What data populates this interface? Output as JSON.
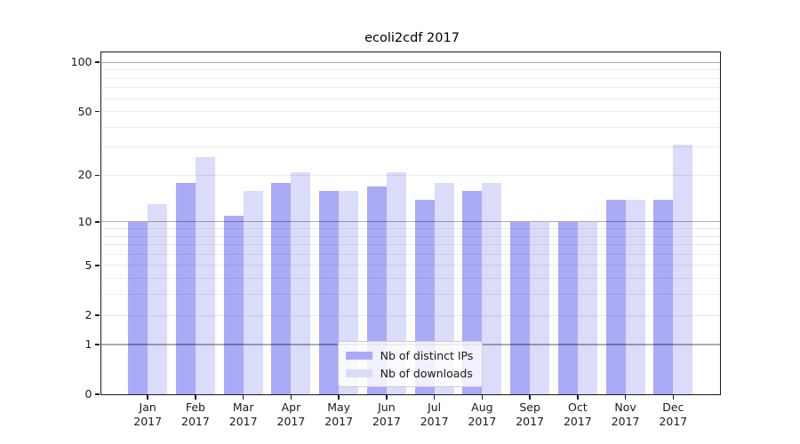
{
  "title": "ecoli2cdf 2017",
  "chart_data": {
    "type": "bar",
    "title": "ecoli2cdf 2017",
    "categories": [
      "Jan 2017",
      "Feb 2017",
      "Mar 2017",
      "Apr 2017",
      "May 2017",
      "Jun 2017",
      "Jul 2017",
      "Aug 2017",
      "Sep 2017",
      "Oct 2017",
      "Nov 2017",
      "Dec 2017"
    ],
    "series": [
      {
        "name": "Nb of distinct IPs",
        "color": "#aaaaf7",
        "values": [
          10,
          18,
          11,
          18,
          16,
          17,
          14,
          16,
          10,
          10,
          14,
          14
        ]
      },
      {
        "name": "Nb of downloads",
        "color": "#dbdbfa",
        "values": [
          13,
          26,
          16,
          21,
          16,
          21,
          18,
          18,
          10,
          10,
          14,
          31
        ]
      }
    ],
    "xlabel": "",
    "ylabel": "",
    "y_scale": "log10(value+1)",
    "y_tick_labels": [
      "0",
      "1",
      "2",
      "5",
      "10",
      "20",
      "50",
      "100"
    ],
    "y_tick_values": [
      0,
      1,
      2,
      5,
      10,
      20,
      50,
      100
    ],
    "major_gridline_values": [
      1,
      10,
      100
    ],
    "minor_gridline_values": [
      2,
      3,
      4,
      5,
      6,
      7,
      8,
      9,
      20,
      30,
      40,
      50,
      60,
      70,
      80,
      90
    ],
    "ylim": [
      0,
      115
    ],
    "grid": true,
    "legend_position": "lower center"
  },
  "colors": {
    "bar_dark": "#aaaaf7",
    "bar_light": "#dbdbfa",
    "major_gridline": "#b3b3b3",
    "minor_gridline": "#ececec",
    "axis": "#1a1a1a",
    "background": "#ffffff"
  }
}
